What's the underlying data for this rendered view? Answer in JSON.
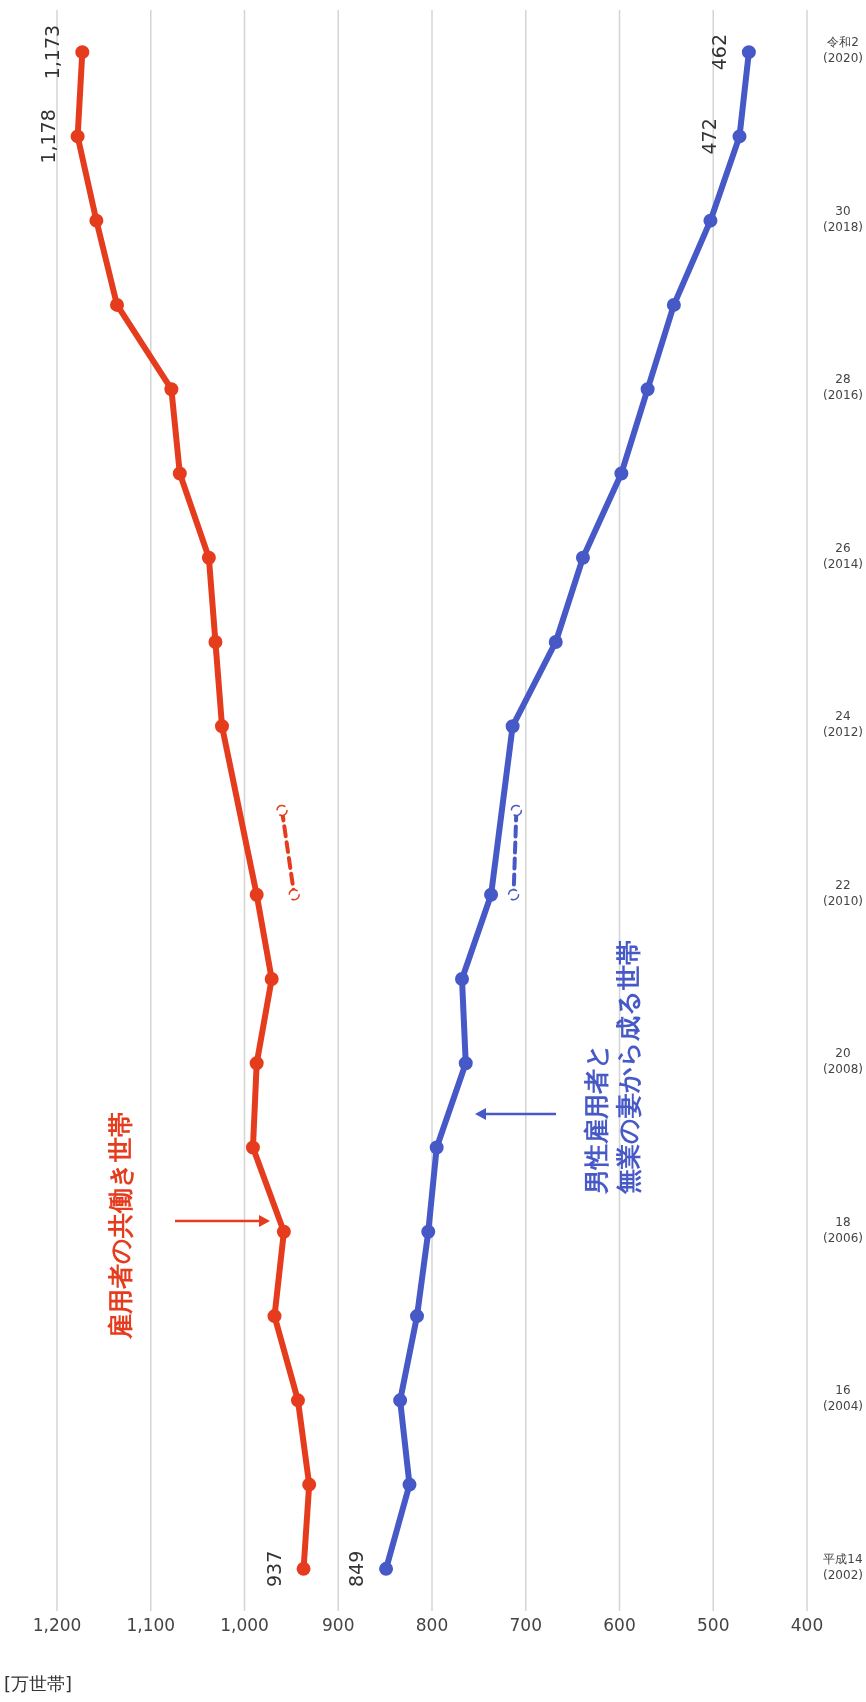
{
  "chart_data": {
    "type": "line",
    "orientation": "horizontal",
    "ylabel": "[万世帯]",
    "categories": [
      "令和2\n(2020)",
      null,
      "30\n(2018)",
      null,
      "28\n(2016)",
      null,
      "26\n(2014)",
      null,
      "24\n(2012)",
      null,
      "22\n(2010)",
      null,
      "20\n(2008)",
      null,
      "18\n(2006)",
      null,
      "16\n(2004)",
      null,
      "平成14\n(2002)"
    ],
    "series": [
      {
        "color": "#e63c1e",
        "values": [
          1173,
          1178,
          1158,
          1136,
          1078,
          1069,
          1038,
          1031,
          1024,
          null,
          987,
          971,
          987,
          991,
          958,
          968,
          943,
          931,
          937
        ],
        "value_labels": [
          "1,173",
          "1,178",
          null,
          null,
          null,
          null,
          null,
          null,
          null,
          null,
          null,
          null,
          null,
          null,
          null,
          null,
          null,
          null,
          "937"
        ]
      },
      {
        "color": "#4659c6",
        "values": [
          462,
          472,
          503,
          542,
          570,
          598,
          639,
          668,
          714,
          null,
          737,
          768,
          764,
          795,
          804,
          816,
          834,
          824,
          849
        ],
        "value_labels": [
          "462",
          "472",
          null,
          null,
          null,
          null,
          null,
          null,
          null,
          null,
          null,
          null,
          null,
          null,
          null,
          null,
          null,
          null,
          "849"
        ]
      },
      {
        "color": "#e63c1e",
        "values": [
          null,
          null,
          null,
          null,
          null,
          null,
          null,
          null,
          null,
          960,
          947,
          null,
          null,
          null,
          null,
          null,
          null,
          null,
          null
        ],
        "line_style": "dashed"
      },
      {
        "color": "#4659c6",
        "values": [
          null,
          null,
          null,
          null,
          null,
          null,
          null,
          null,
          null,
          710,
          713,
          null,
          null,
          null,
          null,
          null,
          null,
          null,
          null
        ],
        "line_style": "dashed"
      }
    ],
    "xlim": [
      1200,
      400
    ],
    "xticks": [
      400,
      500,
      600,
      700,
      800,
      900,
      {
        "value": 1000,
        "label": "1,000"
      },
      {
        "value": 1100,
        "label": "1,100"
      },
      {
        "value": 1200,
        "label": "1,200"
      }
    ],
    "annotations": [
      "雇用者の共働き世帯",
      "男性雇用者と",
      "無業の妻から成る世帯"
    ],
    "grid": "x",
    "marker": "circle",
    "line_style": "solid",
    "legend": false
  }
}
